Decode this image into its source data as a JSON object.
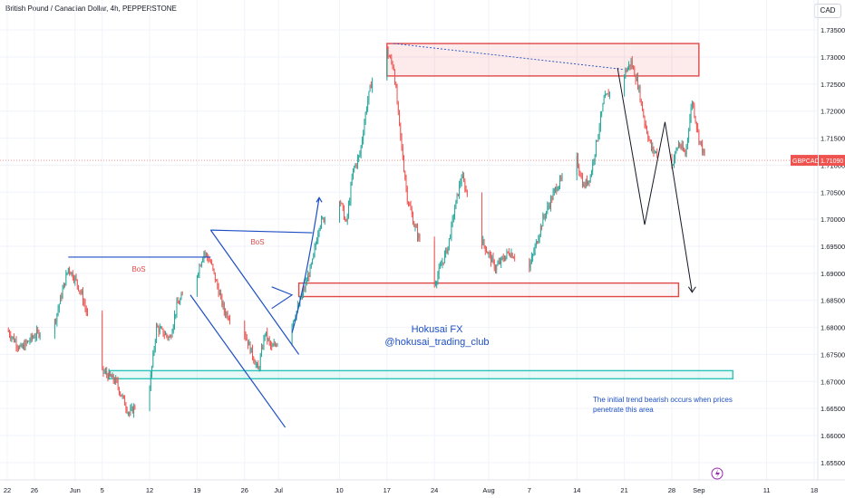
{
  "header": {
    "title": "British Pound / Canadian Dollar, 4h, PEPPERSTONE",
    "currency": "CAD"
  },
  "price_tag": {
    "symbol": "GBPCAD",
    "value": "1.71090"
  },
  "watermark": {
    "line1": "Hokusai FX",
    "line2": "@hokusai_trading_club"
  },
  "annotations": {
    "bos_left": "BoS",
    "bos_right": "BoS",
    "note_line1": "The initial trend bearish occurs when prices",
    "note_line2": "penetrate this area"
  },
  "colors": {
    "up": "#26a69a",
    "down": "#ef5350",
    "resistance": "#e04848",
    "support_teal": "#2cc4b8",
    "trendline": "#1d4fc4",
    "projection": "#131722"
  },
  "icons": [
    "lightning-icon"
  ],
  "chart_data": {
    "type": "candlestick",
    "title": "British Pound / Canadian Dollar, 4h, PEPPERSTONE",
    "y_axis": {
      "range": [
        1.6518,
        1.7372
      ],
      "ticks": [
        "1.73500",
        "1.73000",
        "1.72500",
        "1.72000",
        "1.71500",
        "1.71000",
        "1.70500",
        "1.70000",
        "1.69500",
        "1.69000",
        "1.68500",
        "1.68000",
        "1.67500",
        "1.67000",
        "1.66500",
        "1.66000",
        "1.65500"
      ],
      "side": "right"
    },
    "x_axis": {
      "tick_labels": [
        "22",
        "26",
        "Jun",
        "5",
        "12",
        "19",
        "26",
        "Jul",
        "10",
        "17",
        "24",
        "Aug",
        "7",
        "14",
        "21",
        "28",
        "Sep",
        "11",
        "18"
      ],
      "start_date": "2023-05-22",
      "end_date": "2023-09-18"
    },
    "last_price": 1.7109,
    "price_path": [
      [
        "2023-05-22",
        1.6795
      ],
      [
        "2023-05-24",
        1.676
      ],
      [
        "2023-05-26",
        1.6785
      ],
      [
        "2023-05-29",
        1.681
      ],
      [
        "2023-05-31",
        1.691
      ],
      [
        "2023-06-01",
        1.689
      ],
      [
        "2023-06-02",
        1.686
      ],
      [
        "2023-06-05",
        1.672
      ],
      [
        "2023-06-07",
        1.67
      ],
      [
        "2023-06-09",
        1.664
      ],
      [
        "2023-06-12",
        1.669
      ],
      [
        "2023-06-13",
        1.68
      ],
      [
        "2023-06-15",
        1.678
      ],
      [
        "2023-06-16",
        1.684
      ],
      [
        "2023-06-19",
        1.69
      ],
      [
        "2023-06-20",
        1.694
      ],
      [
        "2023-06-21",
        1.692
      ],
      [
        "2023-06-23",
        1.683
      ],
      [
        "2023-06-26",
        1.679
      ],
      [
        "2023-06-28",
        1.672
      ],
      [
        "2023-06-29",
        1.679
      ],
      [
        "2023-06-30",
        1.676
      ],
      [
        "2023-07-03",
        1.681
      ],
      [
        "2023-07-04",
        1.684
      ],
      [
        "2023-07-06",
        1.692
      ],
      [
        "2023-07-07",
        1.699
      ],
      [
        "2023-07-10",
        1.704
      ],
      [
        "2023-07-11",
        1.699
      ],
      [
        "2023-07-12",
        1.709
      ],
      [
        "2023-07-13",
        1.712
      ],
      [
        "2023-07-14",
        1.721
      ],
      [
        "2023-07-15",
        1.727
      ],
      [
        "2023-07-17",
        1.731
      ],
      [
        "2023-07-18",
        1.728
      ],
      [
        "2023-07-19",
        1.715
      ],
      [
        "2023-07-20",
        1.704
      ],
      [
        "2023-07-21",
        1.699
      ],
      [
        "2023-07-23",
        1.692
      ],
      [
        "2023-07-24",
        1.688
      ],
      [
        "2023-07-26",
        1.695
      ],
      [
        "2023-07-27",
        1.702
      ],
      [
        "2023-07-28",
        1.708
      ],
      [
        "2023-07-31",
        1.696
      ],
      [
        "2023-08-02",
        1.691
      ],
      [
        "2023-08-04",
        1.694
      ],
      [
        "2023-08-07",
        1.691
      ],
      [
        "2023-08-09",
        1.7
      ],
      [
        "2023-08-11",
        1.706
      ],
      [
        "2023-08-14",
        1.711
      ],
      [
        "2023-08-15",
        1.706
      ],
      [
        "2023-08-16",
        1.708
      ],
      [
        "2023-08-17",
        1.715
      ],
      [
        "2023-08-18",
        1.722
      ],
      [
        "2023-08-21",
        1.727
      ],
      [
        "2023-08-22",
        1.729
      ],
      [
        "2023-08-23",
        1.725
      ],
      [
        "2023-08-24",
        1.718
      ],
      [
        "2023-08-25",
        1.713
      ],
      [
        "2023-08-28",
        1.71
      ],
      [
        "2023-08-29",
        1.714
      ],
      [
        "2023-08-30",
        1.712
      ],
      [
        "2023-08-31",
        1.722
      ],
      [
        "2023-09-01",
        1.715
      ],
      [
        "2023-09-02",
        1.7109
      ]
    ],
    "zones": [
      {
        "kind": "resistance",
        "from": "2023-07-17",
        "to": "2023-09-01",
        "low": 1.7265,
        "high": 1.7325
      },
      {
        "kind": "demand",
        "from": "2023-07-04",
        "to": "2023-08-29",
        "low": 1.6857,
        "high": 1.6882
      },
      {
        "kind": "support",
        "from": "2023-06-06",
        "to": "2023-09-06",
        "low": 1.6705,
        "high": 1.672
      }
    ],
    "lines": [
      {
        "kind": "bos",
        "from": [
          "2023-05-31",
          1.693
        ],
        "to": [
          "2023-06-21",
          1.693
        ]
      },
      {
        "kind": "bos",
        "from": [
          "2023-06-21",
          1.698
        ],
        "to": [
          "2023-07-06",
          1.6975
        ]
      },
      {
        "kind": "channel",
        "from": [
          "2023-06-21",
          1.698
        ],
        "to": [
          "2023-07-04",
          1.675
        ]
      },
      {
        "kind": "channel",
        "from": [
          "2023-06-18",
          1.686
        ],
        "to": [
          "2023-07-02",
          1.6615
        ]
      },
      {
        "kind": "dotted",
        "from": [
          "2023-07-18",
          1.7325
        ],
        "to": [
          "2023-08-21",
          1.7277
        ]
      }
    ],
    "projection": [
      [
        "2023-08-20",
        1.728
      ],
      [
        "2023-08-24",
        1.699
      ],
      [
        "2023-08-27",
        1.718
      ],
      [
        "2023-08-31",
        1.6865
      ]
    ],
    "grid": true
  }
}
